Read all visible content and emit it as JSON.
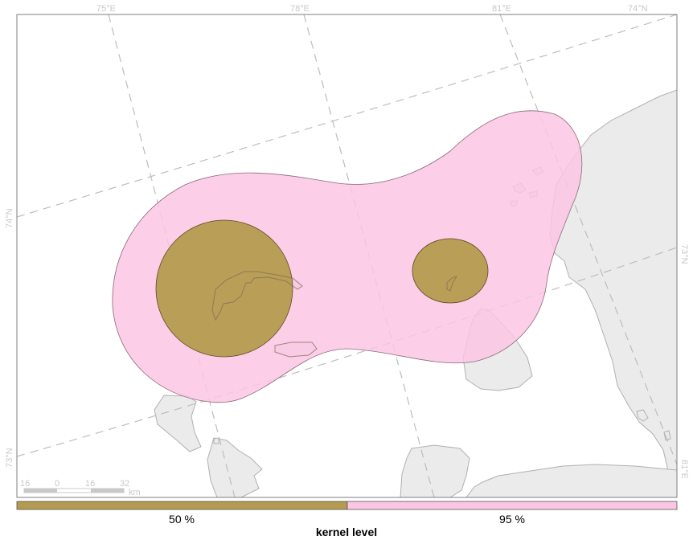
{
  "map": {
    "graticule": {
      "longitude_labels": [
        "75°E",
        "78°E",
        "81°E"
      ],
      "latitude_labels": [
        "74°N",
        "73°N"
      ],
      "top_corner_label": "74°N",
      "right_labels": [
        "73°N",
        "81°E"
      ],
      "left_bottom_label": "73°N"
    },
    "scale_bar": {
      "ticks": [
        "16",
        "0",
        "16",
        "32"
      ],
      "unit": "km"
    },
    "legend": {
      "title": "kernel level",
      "items": [
        {
          "label": "50 %",
          "color": "#b59b4f"
        },
        {
          "label": "95 %",
          "color": "#fbc6e3"
        }
      ]
    },
    "colors": {
      "land": "#ebebeb",
      "coast": "#b0b0b0",
      "kernel_50": "#b59b4f",
      "kernel_95": "#fbc6e3",
      "frame": "#7f7f7f",
      "graticule": "#bdbdbd"
    }
  }
}
